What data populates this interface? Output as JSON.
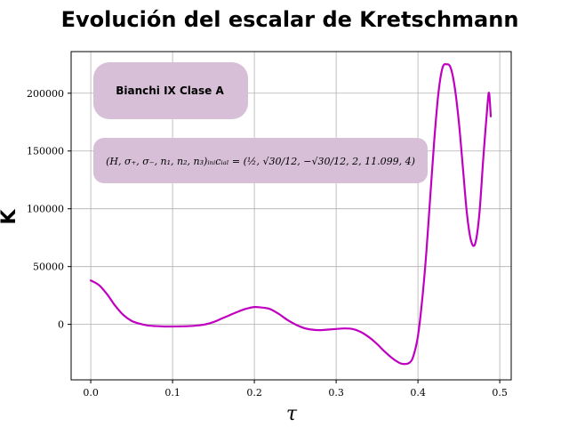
{
  "chart_data": {
    "type": "line",
    "title": "Evolución del escalar de Kretschmann",
    "xlabel": "τ",
    "ylabel": "K",
    "xlim": [
      -0.024,
      0.514
    ],
    "ylim": [
      -48000,
      236000
    ],
    "xticks": [
      0.0,
      0.1,
      0.2,
      0.3,
      0.4,
      0.5
    ],
    "xtick_labels": [
      "0.0",
      "0.1",
      "0.2",
      "0.3",
      "0.4",
      "0.5"
    ],
    "yticks": [
      0,
      50000,
      100000,
      150000,
      200000
    ],
    "ytick_labels": [
      "0",
      "50000",
      "100000",
      "150000",
      "200000"
    ],
    "grid": true,
    "line_color": "#c000c0",
    "box_color": "#d8bfd8",
    "annotations": [
      "Bianchi IX Clase A",
      "(H, σ₊, σ₋, n₁, n₂, n₃)ᵢₙᵢcᵢₐₗ = (½, √30/12, −√30/12, 2, 11.099, 4)"
    ],
    "series": [
      {
        "x": [
          0.0,
          0.01,
          0.02,
          0.03,
          0.04,
          0.05,
          0.06,
          0.07,
          0.08,
          0.09,
          0.1,
          0.11,
          0.12,
          0.13,
          0.14,
          0.15,
          0.16,
          0.17,
          0.18,
          0.19,
          0.2,
          0.21,
          0.215,
          0.22,
          0.23,
          0.24,
          0.25,
          0.26,
          0.27,
          0.28,
          0.29,
          0.3,
          0.31,
          0.32,
          0.33,
          0.34,
          0.35,
          0.36,
          0.37,
          0.38,
          0.39,
          0.395,
          0.4,
          0.405,
          0.41,
          0.415,
          0.42,
          0.425,
          0.43,
          0.435,
          0.44,
          0.445,
          0.45,
          0.455,
          0.46,
          0.465,
          0.47,
          0.475,
          0.48,
          0.485,
          0.487,
          0.489
        ],
        "y": [
          38000,
          34000,
          26000,
          16000,
          8000,
          3000,
          500,
          -1000,
          -1500,
          -1800,
          -1800,
          -1700,
          -1500,
          -1000,
          0,
          2000,
          5000,
          8000,
          11000,
          13500,
          15000,
          14500,
          14000,
          13000,
          9000,
          4000,
          0,
          -3000,
          -4500,
          -5000,
          -4500,
          -4000,
          -3500,
          -4000,
          -6500,
          -11000,
          -17000,
          -24000,
          -30000,
          -34000,
          -33000,
          -26000,
          -10000,
          20000,
          60000,
          110000,
          160000,
          200000,
          222000,
          225000,
          222000,
          205000,
          175000,
          135000,
          95000,
          72000,
          70000,
          95000,
          145000,
          190000,
          200000,
          180000
        ]
      }
    ]
  }
}
